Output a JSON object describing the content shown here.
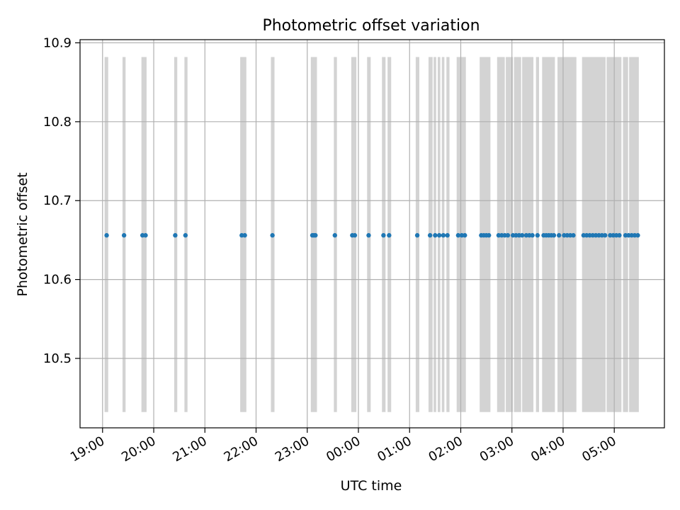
{
  "chart_data": {
    "type": "scatter",
    "title": "Photometric offset variation",
    "xlabel": "UTC time",
    "ylabel": "Photometric offset",
    "grid": true,
    "x_range_hours": [
      18.56,
      29.98
    ],
    "ylim": [
      10.412,
      10.904
    ],
    "x_ticks": [
      {
        "label": "19:00",
        "hour": 19
      },
      {
        "label": "20:00",
        "hour": 20
      },
      {
        "label": "21:00",
        "hour": 21
      },
      {
        "label": "22:00",
        "hour": 22
      },
      {
        "label": "23:00",
        "hour": 23
      },
      {
        "label": "00:00",
        "hour": 24
      },
      {
        "label": "01:00",
        "hour": 25
      },
      {
        "label": "02:00",
        "hour": 26
      },
      {
        "label": "03:00",
        "hour": 27
      },
      {
        "label": "04:00",
        "hour": 28
      },
      {
        "label": "05:00",
        "hour": 29
      }
    ],
    "y_ticks": [
      {
        "label": "10.5",
        "value": 10.5
      },
      {
        "label": "10.6",
        "value": 10.6
      },
      {
        "label": "10.7",
        "value": 10.7
      },
      {
        "label": "10.8",
        "value": 10.8
      },
      {
        "label": "10.9",
        "value": 10.9
      }
    ],
    "series": [
      {
        "color": "#1f77b4",
        "y": 10.656,
        "x_hours": [
          19.08,
          19.42,
          19.78,
          19.84,
          20.42,
          20.62,
          21.72,
          21.78,
          22.32,
          23.1,
          23.13,
          23.16,
          23.54,
          23.88,
          23.93,
          24.2,
          24.49,
          24.6,
          25.15,
          25.4,
          25.5,
          25.58,
          25.66,
          25.74,
          25.95,
          26.02,
          26.08,
          26.4,
          26.45,
          26.5,
          26.55,
          26.74,
          26.8,
          26.86,
          26.92,
          27.02,
          27.08,
          27.14,
          27.2,
          27.28,
          27.34,
          27.4,
          27.5,
          27.62,
          27.67,
          27.72,
          27.77,
          27.82,
          27.92,
          28.02,
          28.08,
          28.14,
          28.2,
          28.4,
          28.46,
          28.52,
          28.58,
          28.64,
          28.7,
          28.76,
          28.82,
          28.92,
          28.98,
          29.04,
          29.1,
          29.22,
          29.28,
          29.34,
          29.4,
          29.46
        ]
      }
    ],
    "shaded_regions": {
      "color": "#d3d3d3",
      "y_range": [
        10.432,
        10.882
      ],
      "spans_hours": [
        [
          19.04,
          19.11
        ],
        [
          19.39,
          19.45
        ],
        [
          19.76,
          19.86
        ],
        [
          20.4,
          20.46
        ],
        [
          20.6,
          20.66
        ],
        [
          21.69,
          21.81
        ],
        [
          22.29,
          22.36
        ],
        [
          23.07,
          23.19
        ],
        [
          23.52,
          23.58
        ],
        [
          23.86,
          23.96
        ],
        [
          24.17,
          24.24
        ],
        [
          24.46,
          24.53
        ],
        [
          24.57,
          24.64
        ],
        [
          25.12,
          25.19
        ],
        [
          25.37,
          25.45
        ],
        [
          25.47,
          25.52
        ],
        [
          25.55,
          25.6
        ],
        [
          25.63,
          25.68
        ],
        [
          25.72,
          25.78
        ],
        [
          25.92,
          26.1
        ],
        [
          26.37,
          26.58
        ],
        [
          26.71,
          26.86
        ],
        [
          26.88,
          27.02
        ],
        [
          27.04,
          27.18
        ],
        [
          27.2,
          27.42
        ],
        [
          27.47,
          27.53
        ],
        [
          27.59,
          27.84
        ],
        [
          27.89,
          28.26
        ],
        [
          28.37,
          28.83
        ],
        [
          28.85,
          29.14
        ],
        [
          29.17,
          29.27
        ],
        [
          29.29,
          29.48
        ]
      ]
    }
  }
}
